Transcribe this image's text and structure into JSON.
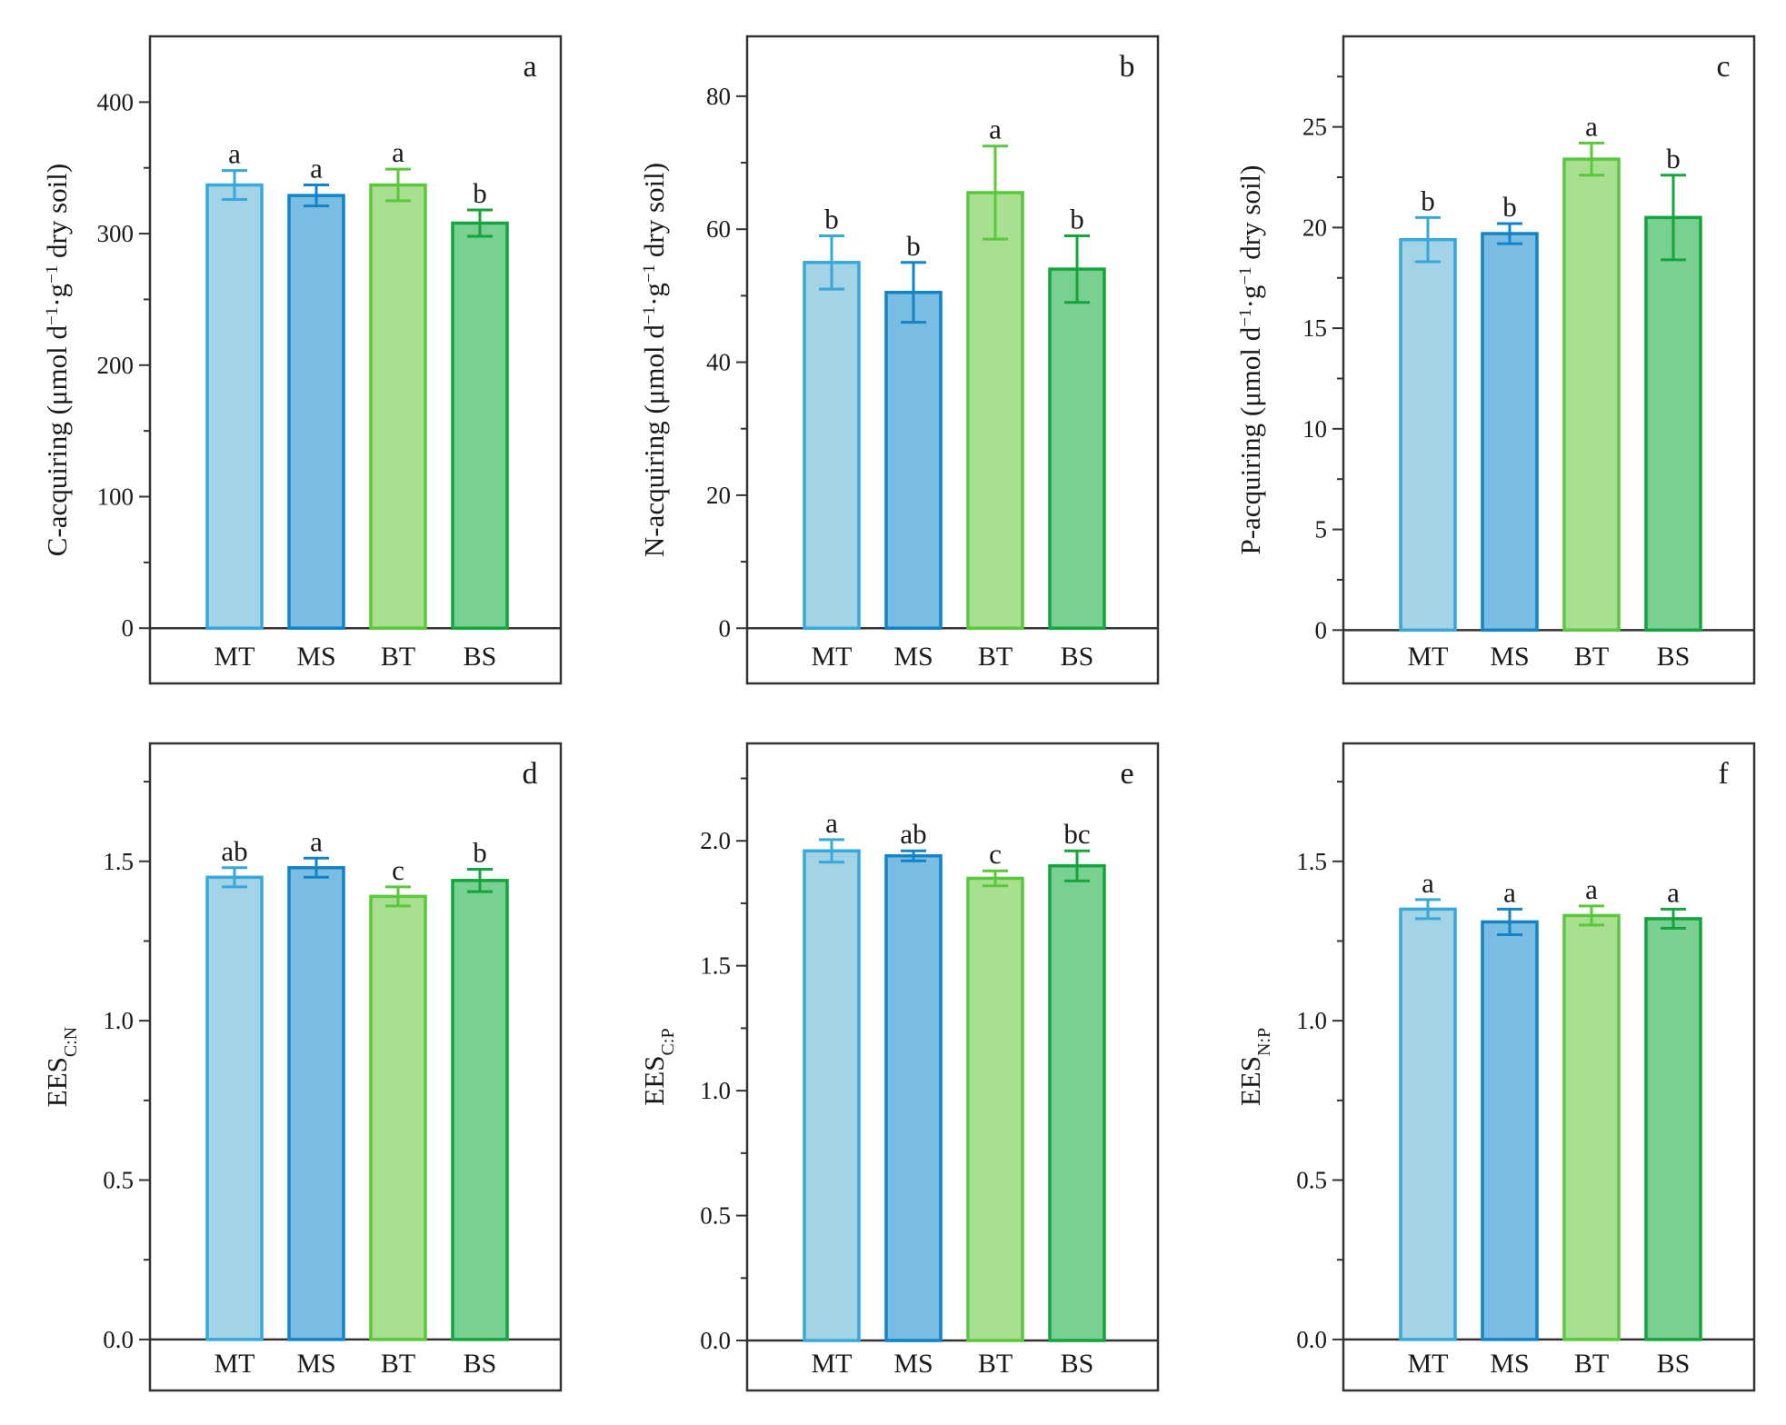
{
  "figure": {
    "colors": {
      "MT": {
        "fill": "#a3d3e6",
        "stroke": "#36a9da"
      },
      "MS": {
        "fill": "#79bde2",
        "stroke": "#1283c9"
      },
      "BT": {
        "fill": "#a9df90",
        "stroke": "#5ac83b"
      },
      "BS": {
        "fill": "#79d191",
        "stroke": "#14a43e"
      }
    }
  },
  "chart_data": [
    {
      "type": "bar",
      "panel": "a",
      "ylabel": {
        "main": "C-acquiring (μmol d",
        "sup1": "−1",
        "mid": "·g",
        "sup2": "−1",
        "end": " dry soil)"
      },
      "categories": [
        "MT",
        "MS",
        "BT",
        "BS"
      ],
      "values": [
        337,
        329,
        337,
        308
      ],
      "errors": [
        11,
        8,
        12,
        10
      ],
      "significance": [
        "a",
        "a",
        "a",
        "b"
      ],
      "ylim": [
        -42,
        450
      ],
      "yticks": [
        0,
        100,
        200,
        300,
        400
      ],
      "ytick_labels": [
        "0",
        "100",
        "200",
        "300",
        "400"
      ]
    },
    {
      "type": "bar",
      "panel": "b",
      "ylabel": {
        "main": "N-acquiring (μmol d",
        "sup1": "−1",
        "mid": "·g",
        "sup2": "−1",
        "end": " dry soil)"
      },
      "categories": [
        "MT",
        "MS",
        "BT",
        "BS"
      ],
      "values": [
        55,
        50.5,
        65.5,
        54
      ],
      "errors": [
        4,
        4.5,
        7,
        5
      ],
      "significance": [
        "b",
        "b",
        "a",
        "b"
      ],
      "ylim": [
        -8.3,
        89
      ],
      "yticks": [
        0,
        20,
        40,
        60,
        80
      ],
      "ytick_labels": [
        "0",
        "20",
        "40",
        "60",
        "80"
      ]
    },
    {
      "type": "bar",
      "panel": "c",
      "ylabel": {
        "main": "P-acquiring (μmol d",
        "sup1": "−1",
        "mid": "·g",
        "sup2": "−1",
        "end": " dry soil)"
      },
      "categories": [
        "MT",
        "MS",
        "BT",
        "BS"
      ],
      "values": [
        19.4,
        19.7,
        23.4,
        20.5
      ],
      "errors": [
        1.1,
        0.5,
        0.8,
        2.1
      ],
      "significance": [
        "b",
        "b",
        "a",
        "b"
      ],
      "ylim": [
        -2.65,
        29.5
      ],
      "yticks": [
        0,
        5,
        10,
        15,
        20,
        25
      ],
      "ytick_labels": [
        "0",
        "5",
        "10",
        "15",
        "20",
        "25"
      ]
    },
    {
      "type": "bar",
      "panel": "d",
      "ylabel": {
        "main": "EES",
        "sub": "C:N"
      },
      "categories": [
        "MT",
        "MS",
        "BT",
        "BS"
      ],
      "values": [
        1.45,
        1.48,
        1.39,
        1.44
      ],
      "errors": [
        0.03,
        0.03,
        0.03,
        0.035
      ],
      "significance": [
        "ab",
        "a",
        "c",
        "b"
      ],
      "ylim": [
        -0.16,
        1.87
      ],
      "yticks": [
        0,
        0.5,
        1.0,
        1.5
      ],
      "ytick_labels": [
        "0.0",
        "0.5",
        "1.0",
        "1.5"
      ]
    },
    {
      "type": "bar",
      "panel": "e",
      "ylabel": {
        "main": "EES",
        "sub": "C:P"
      },
      "categories": [
        "MT",
        "MS",
        "BT",
        "BS"
      ],
      "values": [
        1.96,
        1.94,
        1.85,
        1.9
      ],
      "errors": [
        0.045,
        0.02,
        0.03,
        0.06
      ],
      "significance": [
        "a",
        "ab",
        "c",
        "bc"
      ],
      "ylim": [
        -0.2,
        2.39
      ],
      "yticks": [
        0,
        0.5,
        1.0,
        1.5,
        2.0
      ],
      "ytick_labels": [
        "0.0",
        "0.5",
        "1.0",
        "1.5",
        "2.0"
      ]
    },
    {
      "type": "bar",
      "panel": "f",
      "ylabel": {
        "main": "EES",
        "sub": "N:P"
      },
      "categories": [
        "MT",
        "MS",
        "BT",
        "BS"
      ],
      "values": [
        1.35,
        1.31,
        1.33,
        1.32
      ],
      "errors": [
        0.03,
        0.04,
        0.03,
        0.03
      ],
      "significance": [
        "a",
        "a",
        "a",
        "a"
      ],
      "ylim": [
        -0.16,
        1.87
      ],
      "yticks": [
        0,
        0.5,
        1.0,
        1.5
      ],
      "ytick_labels": [
        "0.0",
        "0.5",
        "1.0",
        "1.5"
      ]
    }
  ]
}
